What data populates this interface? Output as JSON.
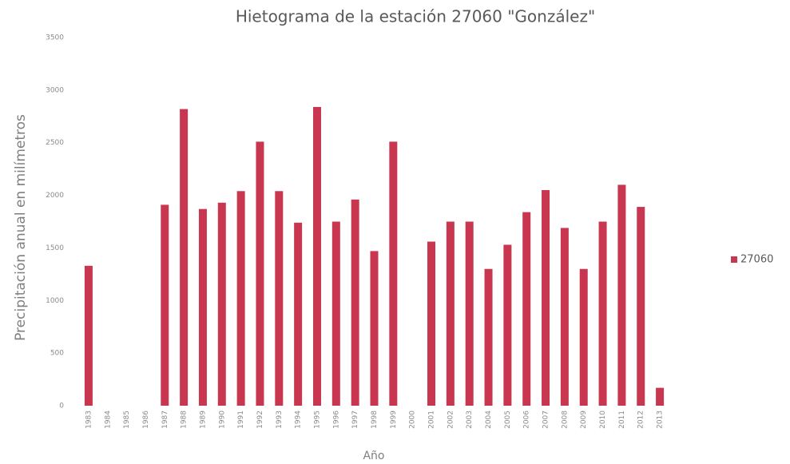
{
  "chart_data": {
    "type": "bar",
    "title": "Hietograma de la estación 27060 \"González\"",
    "y_label": "Precipitación anual en milímetros",
    "x_label": "Año",
    "categories": [
      "1983",
      "1984",
      "1985",
      "1986",
      "1987",
      "1988",
      "1989",
      "1990",
      "1991",
      "1992",
      "1993",
      "1994",
      "1995",
      "1996",
      "1997",
      "1998",
      "1999",
      "2000",
      "2001",
      "2002",
      "2003",
      "2004",
      "2005",
      "2006",
      "2007",
      "2008",
      "2009",
      "2010",
      "2011",
      "2012",
      "2013"
    ],
    "series": [
      {
        "name": "27060",
        "color": "#c8374f",
        "values": [
          1330,
          null,
          null,
          null,
          1910,
          2820,
          1870,
          1930,
          2040,
          2510,
          2040,
          1740,
          2840,
          1750,
          1960,
          1470,
          2510,
          null,
          1560,
          1750,
          1750,
          1300,
          1530,
          1840,
          2050,
          1690,
          1300,
          1750,
          2100,
          1890,
          170
        ]
      }
    ],
    "ylim": [
      0,
      3500
    ],
    "yticks": [
      0,
      500,
      1000,
      1500,
      2000,
      2500,
      3000,
      3500
    ],
    "grid": false,
    "legend": "right"
  }
}
